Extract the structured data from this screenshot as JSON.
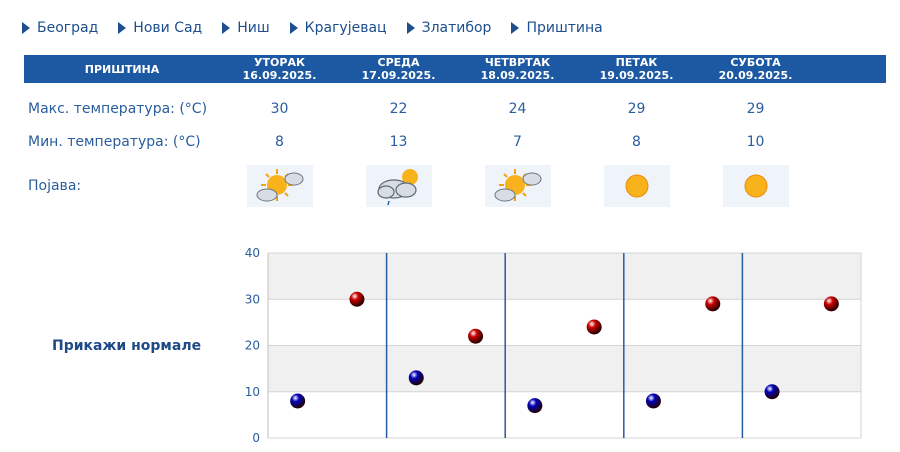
{
  "nav": {
    "cities": [
      {
        "label": "Београд"
      },
      {
        "label": "Нови Сад"
      },
      {
        "label": "Ниш"
      },
      {
        "label": "Крагујевац"
      },
      {
        "label": "Златибор"
      },
      {
        "label": "Приштина"
      }
    ]
  },
  "forecast": {
    "city_header": "ПРИШТИНА",
    "days": [
      {
        "name": "УТОРАК",
        "date": "16.09.2025.",
        "max": "30",
        "min": "8",
        "icon": "sun-behind-cloud-icon"
      },
      {
        "name": "СРЕДА",
        "date": "17.09.2025.",
        "max": "22",
        "min": "13",
        "icon": "cloud-with-sun-and-rain-icon"
      },
      {
        "name": "ЧЕТВРТАК",
        "date": "18.09.2025.",
        "max": "24",
        "min": "7",
        "icon": "sun-behind-cloud-icon"
      },
      {
        "name": "ПЕТАК",
        "date": "19.09.2025.",
        "max": "29",
        "min": "8",
        "icon": "sun-icon"
      },
      {
        "name": "СУБОТА",
        "date": "20.09.2025.",
        "max": "29",
        "min": "10",
        "icon": "sun-icon"
      }
    ],
    "row_labels": {
      "max": "Макс. температура: (°C)",
      "min": "Мин. температура: (°C)",
      "phenomenon": "Појава:"
    }
  },
  "normals_link": "Прикажи нормале",
  "colors": {
    "header_bg": "#1d59a3",
    "text": "#1d4f8d",
    "max_marker": "#cc0000",
    "min_marker": "#0000bb",
    "divider": "#2a5aa0"
  },
  "chart_data": {
    "type": "scatter",
    "title": "",
    "xlabel": "",
    "ylabel": "",
    "ylim": [
      0,
      40
    ],
    "yticks": [
      0,
      10,
      20,
      30,
      40
    ],
    "categories": [
      "16.09.2025.",
      "17.09.2025.",
      "18.09.2025.",
      "19.09.2025.",
      "20.09.2025."
    ],
    "series": [
      {
        "key": "min",
        "values": [
          8,
          13,
          7,
          8,
          10
        ],
        "color": "#0000bb"
      },
      {
        "key": "max",
        "values": [
          30,
          22,
          24,
          29,
          29
        ],
        "color": "#cc0000"
      }
    ],
    "grid": true,
    "legend": false
  }
}
